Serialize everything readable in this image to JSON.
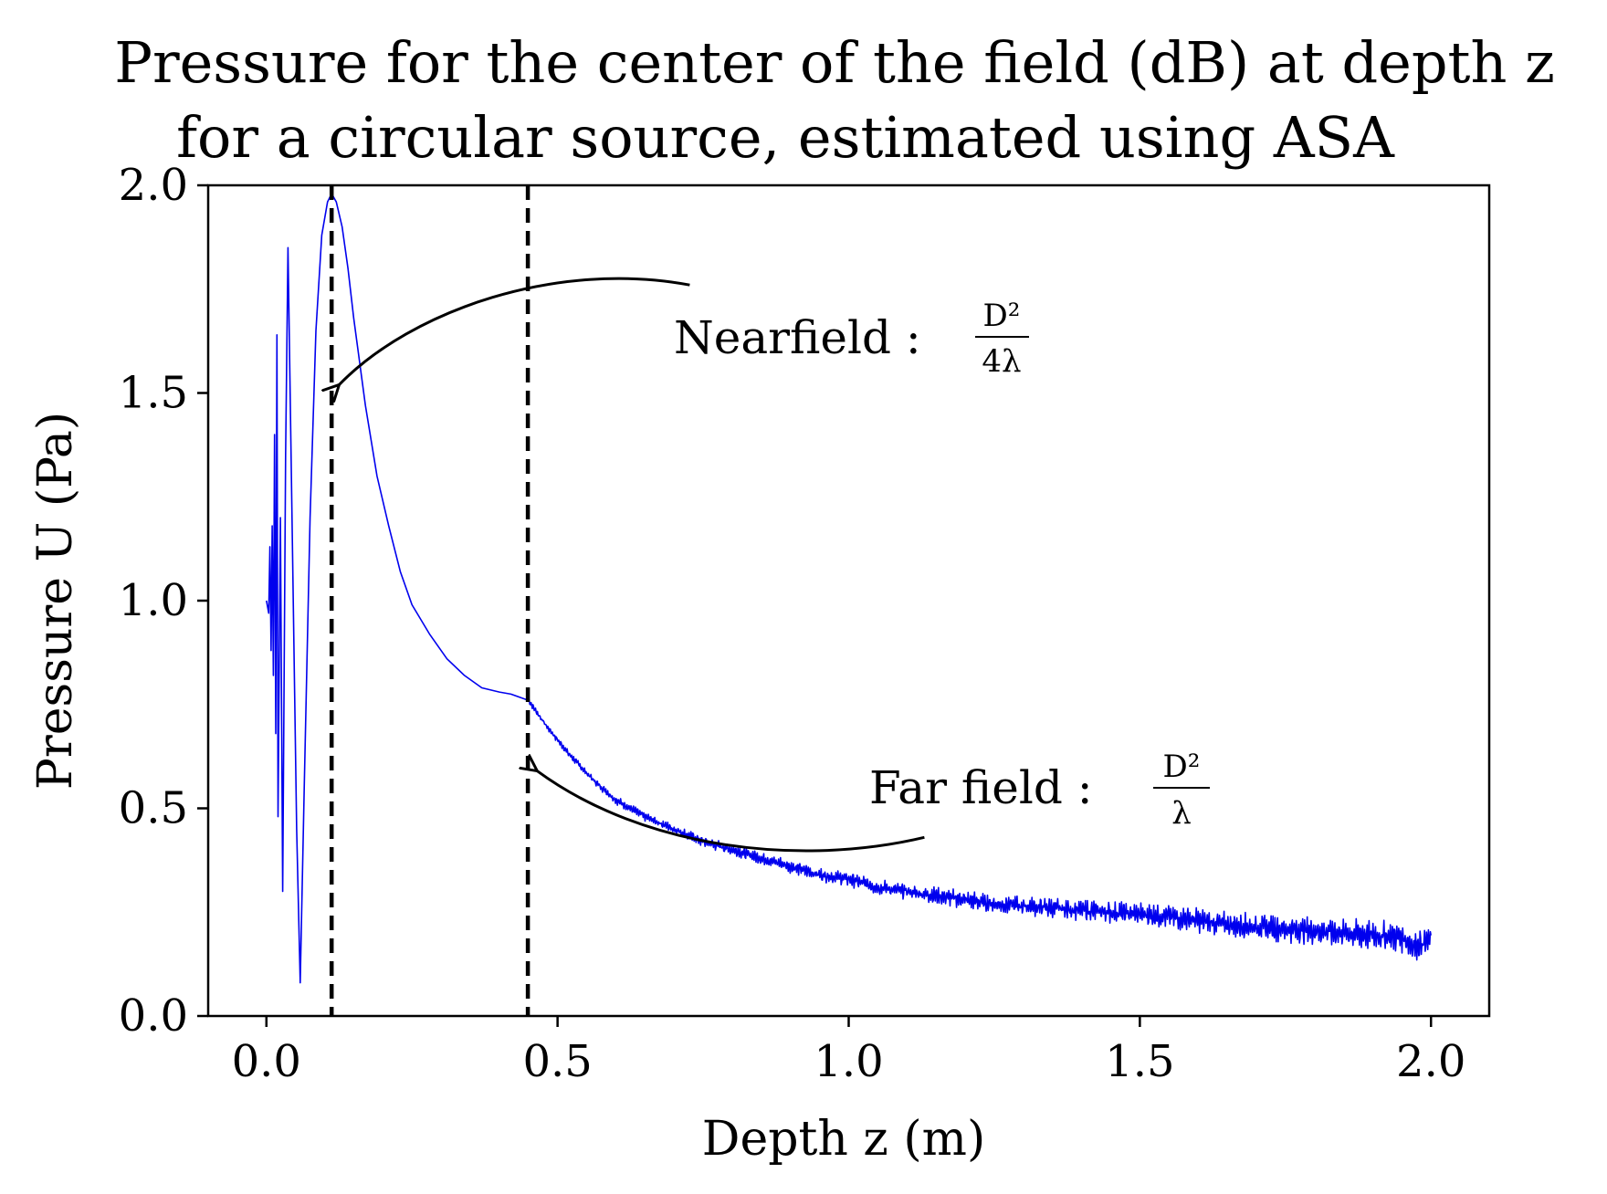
{
  "chart_data": {
    "type": "line",
    "title_lines": [
      "Pressure for the center of the field (dB) at depth z",
      "for a circular source, estimated using ASA"
    ],
    "xlabel": "Depth z (m)",
    "ylabel": "Pressure U (Pa)",
    "xlim": [
      -0.1,
      2.1
    ],
    "ylim": [
      0.0,
      2.0
    ],
    "xticks": [
      "0.0",
      "0.5",
      "1.0",
      "1.5",
      "2.0"
    ],
    "yticks": [
      "0.0",
      "0.5",
      "1.0",
      "1.5",
      "2.0"
    ],
    "grid": false,
    "legend": "none",
    "series_color": "#0000ee",
    "series": [
      {
        "x": [
          0.0,
          0.004,
          0.006,
          0.008,
          0.01,
          0.012,
          0.014,
          0.016,
          0.018,
          0.02,
          0.024,
          0.028,
          0.033,
          0.037,
          0.045,
          0.052,
          0.058,
          0.065,
          0.075,
          0.085,
          0.095,
          0.105,
          0.112,
          0.12,
          0.13,
          0.14,
          0.15,
          0.17,
          0.19,
          0.21,
          0.23,
          0.25,
          0.28,
          0.31,
          0.34,
          0.37,
          0.4,
          0.42,
          0.45,
          0.48,
          0.52,
          0.56,
          0.6,
          0.65,
          0.7,
          0.75,
          0.8,
          0.85,
          0.9,
          0.95,
          1.0,
          1.05,
          1.1,
          1.15,
          1.2,
          1.25,
          1.3,
          1.35,
          1.4,
          1.45,
          1.5,
          1.55,
          1.6,
          1.65,
          1.7,
          1.75,
          1.8,
          1.85,
          1.9,
          1.95,
          1.97,
          2.0
        ],
        "y": [
          1.0,
          0.97,
          1.13,
          0.88,
          1.18,
          0.82,
          1.4,
          0.68,
          1.64,
          0.48,
          1.2,
          0.3,
          1.35,
          1.85,
          1.1,
          0.45,
          0.08,
          0.55,
          1.2,
          1.65,
          1.88,
          1.96,
          1.98,
          1.96,
          1.9,
          1.8,
          1.68,
          1.47,
          1.3,
          1.18,
          1.07,
          0.99,
          0.92,
          0.86,
          0.82,
          0.79,
          0.78,
          0.775,
          0.76,
          0.7,
          0.63,
          0.57,
          0.52,
          0.48,
          0.45,
          0.42,
          0.4,
          0.38,
          0.36,
          0.34,
          0.33,
          0.31,
          0.3,
          0.29,
          0.28,
          0.27,
          0.265,
          0.26,
          0.255,
          0.25,
          0.245,
          0.24,
          0.23,
          0.22,
          0.215,
          0.21,
          0.205,
          0.2,
          0.195,
          0.19,
          0.17,
          0.18
        ],
        "noise_from_x": 0.45
      }
    ],
    "vlines": [
      {
        "x": 0.112,
        "style": "dashed",
        "color": "#000000"
      },
      {
        "x": 0.449,
        "style": "dashed",
        "color": "#000000"
      }
    ],
    "annotations": [
      {
        "label": "Nearfield :",
        "formula_num": "D²",
        "formula_den": "4λ",
        "text_at": [
          0.7,
          1.63
        ],
        "arrow_to": [
          0.125,
          1.52
        ]
      },
      {
        "label": "Far field :",
        "formula_num": "D²",
        "formula_den": "λ",
        "text_at": [
          1.04,
          0.53
        ],
        "arrow_to": [
          0.465,
          0.59
        ]
      }
    ]
  }
}
